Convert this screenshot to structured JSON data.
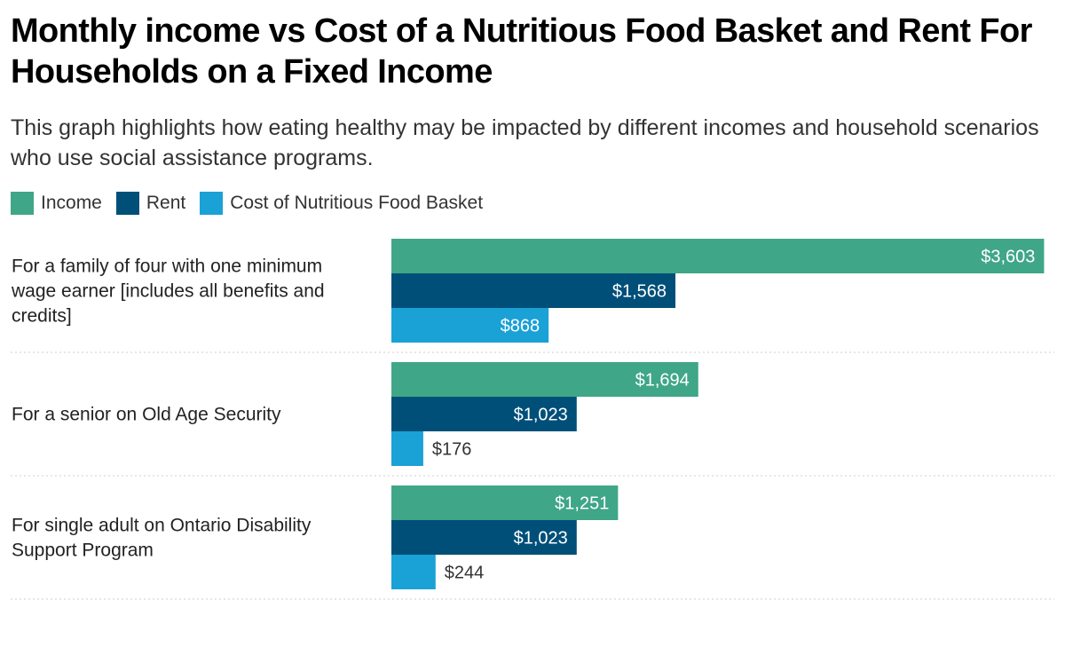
{
  "chart_data": {
    "type": "bar",
    "orientation": "horizontal",
    "title": "Monthly income vs Cost of a Nutritious Food Basket and Rent For Households on a Fixed Income",
    "subtitle": "This graph highlights how eating healthy may be impacted by different incomes and household scenarios who use social assistance programs.",
    "categories": [
      "For a family of four with one minimum wage earner [includes all benefits and credits]",
      "For a senior on Old Age Security",
      "For single adult on Ontario Disability Support Program"
    ],
    "category_lines": [
      [
        "For a family of four with one minimum",
        "wage earner [includes all benefits and",
        "credits]"
      ],
      [
        "For a senior on Old Age Security"
      ],
      [
        "For single adult on Ontario Disability",
        "Support Program"
      ]
    ],
    "series": [
      {
        "name": "Income",
        "color": "#3fa687",
        "values": [
          3603,
          1694,
          1251
        ],
        "labels": [
          "$3,603",
          "$1,694",
          "$1,251"
        ]
      },
      {
        "name": "Rent",
        "color": "#004f79",
        "values": [
          1568,
          1023,
          1023
        ],
        "labels": [
          "$1,568",
          "$1,023",
          "$1,023"
        ]
      },
      {
        "name": "Cost of Nutritious Food Basket",
        "color": "#1aa1d6",
        "values": [
          868,
          176,
          244
        ],
        "labels": [
          "$868",
          "$176",
          "$244"
        ]
      }
    ],
    "xlim": [
      0,
      3650
    ],
    "legend_position": "top-left",
    "grid": false,
    "xlabel": "",
    "ylabel": ""
  }
}
